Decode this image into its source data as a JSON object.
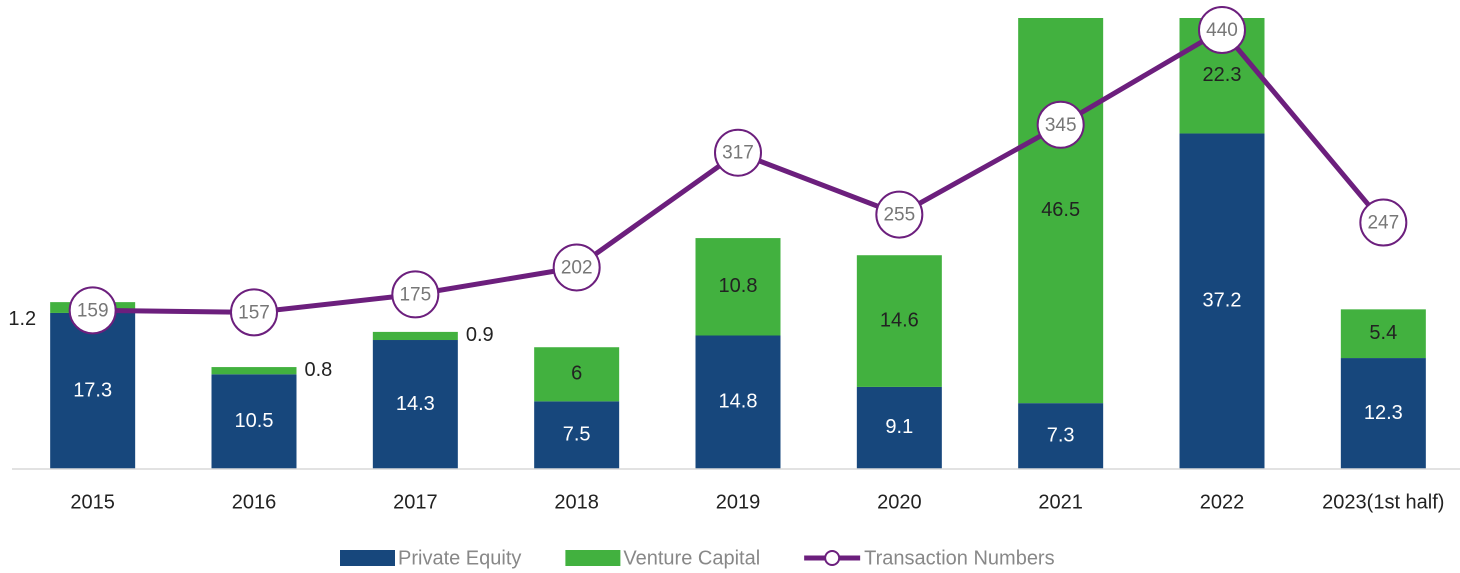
{
  "chart_data": {
    "type": "bar",
    "categories": [
      "2015",
      "2016",
      "2017",
      "2018",
      "2019",
      "2020",
      "2021",
      "2022",
      "2023(1st half)"
    ],
    "series": [
      {
        "name": "Private Equity",
        "color": "#17477c",
        "values": [
          17.3,
          10.5,
          14.3,
          7.5,
          14.8,
          9.1,
          7.3,
          37.2,
          12.3
        ]
      },
      {
        "name": "Venture Capital",
        "color": "#42b13f",
        "values": [
          1.2,
          0.8,
          0.9,
          6,
          10.8,
          14.6,
          46.5,
          22.3,
          5.4
        ]
      },
      {
        "name": "Transaction Numbers",
        "color": "#6c1f7d",
        "type": "line",
        "axis": "y2",
        "values": [
          159,
          157,
          175,
          202,
          317,
          255,
          345,
          440,
          247
        ]
      }
    ],
    "ylim": [
      0,
      50
    ],
    "y2lim": [
      0,
      452
    ],
    "legend": "bottom"
  }
}
